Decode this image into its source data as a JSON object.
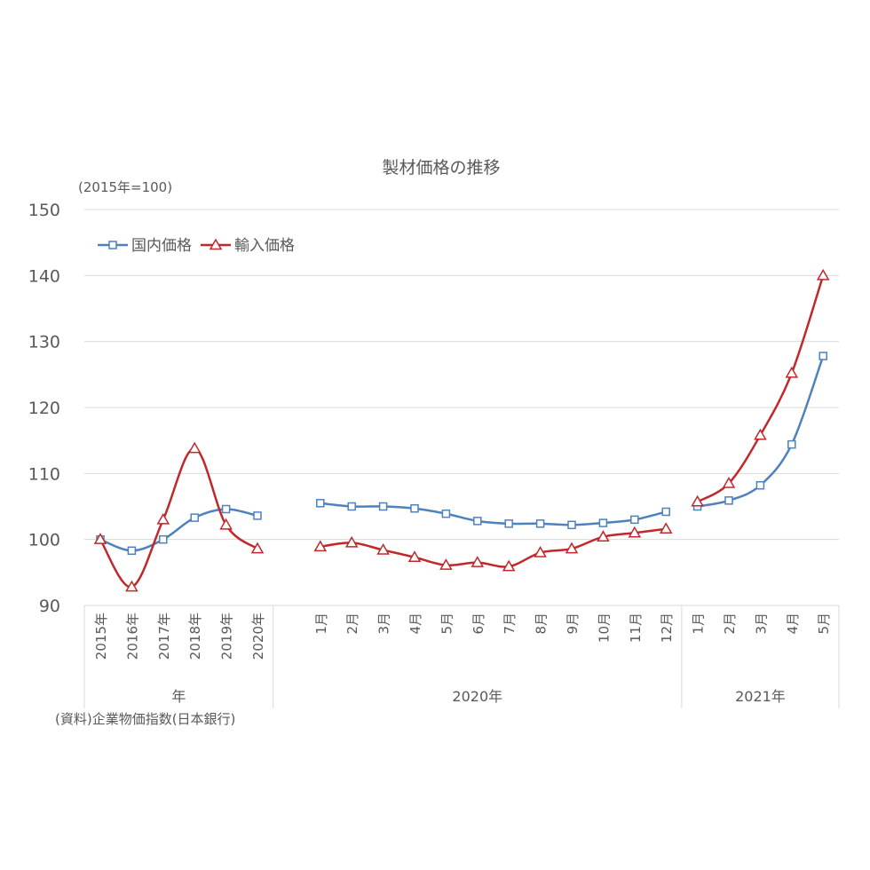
{
  "chart_data": {
    "type": "line",
    "title": "製材価格の推移",
    "ylabel": "(2015年=100)",
    "ylim": [
      90,
      150
    ],
    "yticks": [
      90,
      100,
      110,
      120,
      130,
      140,
      150
    ],
    "grid": true,
    "legend_position": "top-left",
    "source_note": "(資料)企業物価指数(日本銀行)",
    "x_groups": [
      {
        "label": "年",
        "categories": [
          "2015年",
          "2016年",
          "2017年",
          "2018年",
          "2019年",
          "2020年"
        ]
      },
      {
        "label": "2020年",
        "categories": [
          "1月",
          "2月",
          "3月",
          "4月",
          "5月",
          "6月",
          "7月",
          "8月",
          "9月",
          "10月",
          "11月",
          "12月"
        ]
      },
      {
        "label": "2021年",
        "categories": [
          "1月",
          "2月",
          "3月",
          "4月",
          "5月"
        ]
      }
    ],
    "series": [
      {
        "name": "国内価格",
        "color": "#4f81bd",
        "marker": "square",
        "values": [
          [
            100.0,
            98.3,
            100.0,
            103.3,
            104.6,
            103.6
          ],
          [
            105.5,
            105.0,
            105.0,
            104.7,
            103.9,
            102.8,
            102.4,
            102.4,
            102.2,
            102.5,
            103.0,
            104.2
          ],
          [
            105.0,
            105.9,
            108.2,
            114.4,
            127.8
          ]
        ]
      },
      {
        "name": "輸入価格",
        "color": "#c0282b",
        "marker": "triangle",
        "values": [
          [
            100.0,
            92.8,
            103.0,
            113.8,
            102.2,
            98.6
          ],
          [
            98.9,
            99.5,
            98.4,
            97.3,
            96.1,
            96.5,
            95.9,
            98.0,
            98.6,
            100.4,
            101.0,
            101.6
          ],
          [
            105.7,
            108.5,
            115.8,
            125.2,
            140.0
          ]
        ]
      }
    ]
  }
}
